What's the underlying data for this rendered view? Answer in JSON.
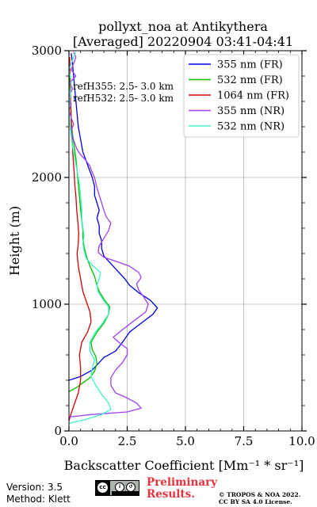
{
  "chart_data": {
    "type": "line",
    "title": "pollyxt_noa at Antikythera",
    "subtitle": "[Averaged] 20220904 03:41-04:41",
    "xlabel": "Backscatter Coefficient [Mm⁻¹ * sr⁻¹]",
    "ylabel": "Height (m)",
    "xlim": [
      0,
      10
    ],
    "ylim": [
      0,
      3000
    ],
    "xticks": [
      "0.0",
      "2.5",
      "5.0",
      "7.5",
      "10.0"
    ],
    "yticks": [
      "0",
      "1000",
      "2000",
      "3000"
    ],
    "grid": true,
    "legend_position": "top-right",
    "annotations": [
      "refH355:  2.5- 3.0 km",
      "refH532:  2.5- 3.0 km"
    ],
    "series": [
      {
        "name": "355 nm (FR)",
        "color": "#0000e0",
        "points": [
          [
            0,
            400
          ],
          [
            0.5,
            430
          ],
          [
            1.0,
            480
          ],
          [
            1.5,
            580
          ],
          [
            2.0,
            630
          ],
          [
            2.3,
            700
          ],
          [
            2.6,
            780
          ],
          [
            3.1,
            850
          ],
          [
            3.6,
            920
          ],
          [
            3.8,
            970
          ],
          [
            3.5,
            1030
          ],
          [
            3.0,
            1090
          ],
          [
            2.6,
            1150
          ],
          [
            2.4,
            1200
          ],
          [
            2.1,
            1260
          ],
          [
            1.8,
            1320
          ],
          [
            1.5,
            1380
          ],
          [
            1.4,
            1440
          ],
          [
            1.4,
            1500
          ],
          [
            1.3,
            1560
          ],
          [
            1.3,
            1620
          ],
          [
            1.2,
            1680
          ],
          [
            1.3,
            1740
          ],
          [
            1.2,
            1800
          ],
          [
            1.1,
            1860
          ],
          [
            1.1,
            1930
          ],
          [
            1.0,
            2000
          ],
          [
            0.8,
            2100
          ],
          [
            0.6,
            2200
          ],
          [
            0.5,
            2300
          ],
          [
            0.4,
            2400
          ],
          [
            0.35,
            2500
          ],
          [
            0.3,
            2600
          ],
          [
            0.25,
            2700
          ],
          [
            0.2,
            2800
          ],
          [
            0.15,
            2900
          ],
          [
            0.1,
            2980
          ]
        ]
      },
      {
        "name": "532 nm (FR)",
        "color": "#00c000",
        "points": [
          [
            0,
            310
          ],
          [
            0.3,
            340
          ],
          [
            0.6,
            380
          ],
          [
            0.9,
            420
          ],
          [
            1.1,
            470
          ],
          [
            1.2,
            530
          ],
          [
            1.15,
            590
          ],
          [
            1.0,
            640
          ],
          [
            0.95,
            700
          ],
          [
            1.2,
            780
          ],
          [
            1.5,
            850
          ],
          [
            1.7,
            920
          ],
          [
            1.75,
            980
          ],
          [
            1.5,
            1040
          ],
          [
            1.3,
            1100
          ],
          [
            1.2,
            1150
          ],
          [
            1.1,
            1220
          ],
          [
            0.9,
            1300
          ],
          [
            0.75,
            1380
          ],
          [
            0.65,
            1450
          ],
          [
            0.6,
            1520
          ],
          [
            0.6,
            1580
          ],
          [
            0.55,
            1660
          ],
          [
            0.5,
            1750
          ],
          [
            0.45,
            1850
          ],
          [
            0.4,
            1950
          ],
          [
            0.35,
            2050
          ],
          [
            0.3,
            2150
          ],
          [
            0.22,
            2250
          ],
          [
            0.15,
            2350
          ],
          [
            0.1,
            2450
          ],
          [
            0.08,
            2550
          ],
          [
            0.05,
            2650
          ],
          [
            0.04,
            2750
          ],
          [
            0.03,
            2850
          ],
          [
            0.02,
            2950
          ]
        ]
      },
      {
        "name": "1064 nm (FR)",
        "color": "#d40000",
        "points": [
          [
            0,
            80
          ],
          [
            0.1,
            140
          ],
          [
            0.25,
            220
          ],
          [
            0.4,
            300
          ],
          [
            0.5,
            400
          ],
          [
            0.5,
            500
          ],
          [
            0.45,
            600
          ],
          [
            0.55,
            700
          ],
          [
            0.8,
            780
          ],
          [
            0.95,
            860
          ],
          [
            0.9,
            940
          ],
          [
            0.75,
            1020
          ],
          [
            0.6,
            1100
          ],
          [
            0.5,
            1200
          ],
          [
            0.4,
            1300
          ],
          [
            0.35,
            1400
          ],
          [
            0.4,
            1480
          ],
          [
            0.42,
            1560
          ],
          [
            0.38,
            1650
          ],
          [
            0.33,
            1750
          ],
          [
            0.3,
            1850
          ],
          [
            0.25,
            1950
          ],
          [
            0.22,
            2050
          ],
          [
            0.18,
            2150
          ],
          [
            0.15,
            2250
          ],
          [
            0.12,
            2350
          ],
          [
            0.1,
            2450
          ],
          [
            0.08,
            2550
          ],
          [
            0.06,
            2650
          ],
          [
            0.05,
            2750
          ],
          [
            0.04,
            2850
          ],
          [
            0.03,
            2950
          ]
        ]
      },
      {
        "name": "355 nm (NR)",
        "color": "#a040f0",
        "points": [
          [
            0,
            110
          ],
          [
            1.0,
            130
          ],
          [
            2.5,
            150
          ],
          [
            3.1,
            180
          ],
          [
            2.9,
            220
          ],
          [
            2.5,
            260
          ],
          [
            2.0,
            300
          ],
          [
            1.8,
            360
          ],
          [
            1.8,
            420
          ],
          [
            2.0,
            480
          ],
          [
            2.3,
            540
          ],
          [
            2.5,
            600
          ],
          [
            2.5,
            650
          ],
          [
            2.2,
            690
          ],
          [
            1.9,
            740
          ],
          [
            2.3,
            800
          ],
          [
            2.8,
            870
          ],
          [
            3.3,
            940
          ],
          [
            3.4,
            1000
          ],
          [
            3.2,
            1060
          ],
          [
            3.0,
            1110
          ],
          [
            2.9,
            1160
          ],
          [
            3.1,
            1210
          ],
          [
            3.0,
            1250
          ],
          [
            2.6,
            1300
          ],
          [
            2.0,
            1340
          ],
          [
            1.5,
            1370
          ],
          [
            1.25,
            1410
          ],
          [
            1.3,
            1460
          ],
          [
            1.5,
            1520
          ],
          [
            1.7,
            1580
          ],
          [
            1.8,
            1640
          ],
          [
            1.6,
            1690
          ],
          [
            1.5,
            1740
          ],
          [
            1.4,
            1800
          ],
          [
            1.3,
            1860
          ],
          [
            1.2,
            1920
          ],
          [
            1.15,
            1960
          ],
          [
            1.1,
            2000
          ],
          [
            1.0,
            2040
          ],
          [
            0.9,
            2090
          ],
          [
            0.7,
            2140
          ],
          [
            0.5,
            2180
          ],
          [
            0.35,
            2220
          ],
          [
            0.25,
            2270
          ],
          [
            0.15,
            2320
          ],
          [
            0.1,
            2370
          ],
          [
            0.2,
            2420
          ],
          [
            0.1,
            2470
          ],
          [
            0.0,
            2530
          ],
          [
            0.1,
            2580
          ],
          [
            0.0,
            2640
          ],
          [
            0.15,
            2700
          ],
          [
            0.05,
            2750
          ],
          [
            0.3,
            2800
          ],
          [
            0.1,
            2850
          ],
          [
            0.2,
            2900
          ],
          [
            0.3,
            2950
          ],
          [
            0.2,
            2990
          ]
        ]
      },
      {
        "name": "532 nm (NR)",
        "color": "#40f0c8",
        "points": [
          [
            0,
            60
          ],
          [
            0.7,
            90
          ],
          [
            1.4,
            130
          ],
          [
            1.8,
            170
          ],
          [
            1.7,
            220
          ],
          [
            1.4,
            290
          ],
          [
            1.15,
            360
          ],
          [
            0.95,
            430
          ],
          [
            1.0,
            500
          ],
          [
            1.1,
            560
          ],
          [
            0.9,
            630
          ],
          [
            0.9,
            700
          ],
          [
            1.1,
            770
          ],
          [
            1.4,
            840
          ],
          [
            1.7,
            920
          ],
          [
            1.7,
            980
          ],
          [
            1.45,
            1040
          ],
          [
            1.25,
            1100
          ],
          [
            1.2,
            1150
          ],
          [
            1.3,
            1200
          ],
          [
            1.35,
            1250
          ],
          [
            1.05,
            1300
          ],
          [
            0.75,
            1360
          ],
          [
            0.65,
            1420
          ],
          [
            0.6,
            1480
          ],
          [
            0.65,
            1540
          ],
          [
            0.6,
            1600
          ],
          [
            0.55,
            1680
          ],
          [
            0.55,
            1750
          ],
          [
            0.5,
            1850
          ],
          [
            0.45,
            1950
          ],
          [
            0.35,
            2050
          ],
          [
            0.25,
            2150
          ],
          [
            0.15,
            2250
          ],
          [
            0.08,
            2350
          ],
          [
            0.02,
            2450
          ],
          [
            0.0,
            2550
          ],
          [
            0.05,
            2650
          ],
          [
            0.1,
            2750
          ],
          [
            0.0,
            2850
          ],
          [
            0.2,
            2950
          ],
          [
            0.3,
            2990
          ]
        ]
      }
    ]
  },
  "footer": {
    "version": "Version: 3.5",
    "method": "Method: Klett",
    "preliminary_line1": "Preliminary",
    "preliminary_line2": "Results.",
    "copyright_line1": "© TROPOS & NOA 2022.",
    "copyright_line2": "CC BY SA 4.0 License."
  }
}
